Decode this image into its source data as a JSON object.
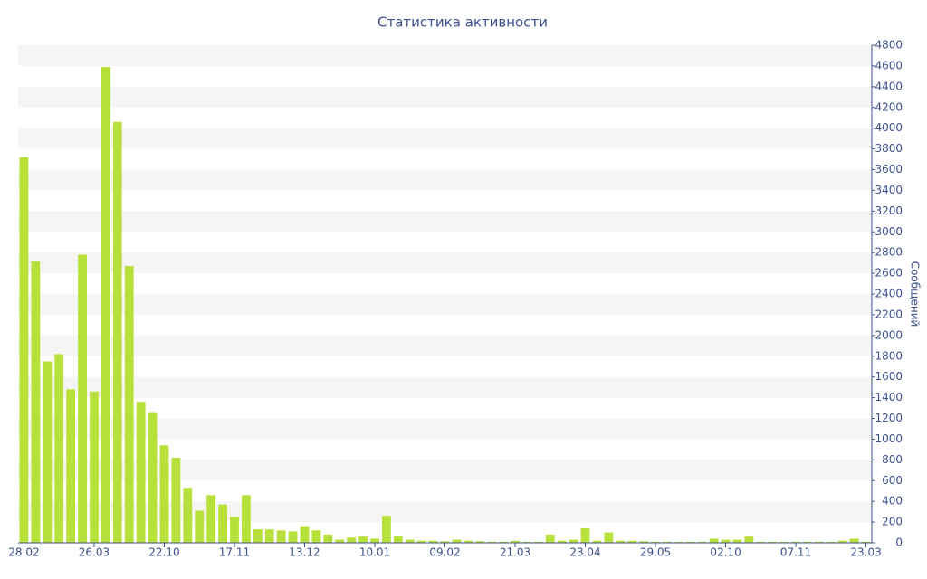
{
  "chart_data": {
    "type": "bar",
    "title": "Статистика активности",
    "y_label": "Сообщений",
    "categories": [
      "28.02",
      null,
      null,
      null,
      null,
      null,
      "26.03",
      null,
      null,
      null,
      null,
      null,
      "22.10",
      null,
      null,
      null,
      null,
      null,
      "17.11",
      null,
      null,
      null,
      null,
      null,
      "13.12",
      null,
      null,
      null,
      null,
      null,
      "10.01",
      null,
      null,
      null,
      null,
      null,
      "09.02",
      null,
      null,
      null,
      null,
      null,
      "21.03",
      null,
      null,
      null,
      null,
      null,
      "23.04",
      null,
      null,
      null,
      null,
      null,
      "29.05",
      null,
      null,
      null,
      null,
      null,
      "02.10",
      null,
      null,
      null,
      null,
      null,
      "07.11",
      null,
      null,
      null,
      null,
      null,
      "23.03"
    ],
    "values": [
      3720,
      2720,
      1750,
      1820,
      1480,
      2780,
      1460,
      4590,
      4060,
      2670,
      1360,
      1260,
      940,
      820,
      530,
      310,
      460,
      370,
      250,
      460,
      130,
      130,
      120,
      110,
      160,
      120,
      80,
      30,
      50,
      60,
      40,
      260,
      70,
      30,
      20,
      20,
      15,
      30,
      20,
      15,
      10,
      10,
      20,
      10,
      10,
      80,
      20,
      30,
      140,
      20,
      100,
      20,
      20,
      15,
      10,
      10,
      10,
      10,
      10,
      40,
      30,
      30,
      60,
      10,
      10,
      10,
      10,
      10,
      10,
      10,
      20,
      40,
      10
    ],
    "color": "#b8e03a",
    "ylim": [
      0,
      4800
    ],
    "yticks": [
      0,
      200,
      400,
      600,
      800,
      1000,
      1200,
      1400,
      1600,
      1800,
      2000,
      2200,
      2400,
      2600,
      2800,
      3000,
      3200,
      3400,
      3600,
      3800,
      4000,
      4200,
      4400,
      4600,
      4800
    ],
    "grid": true
  }
}
